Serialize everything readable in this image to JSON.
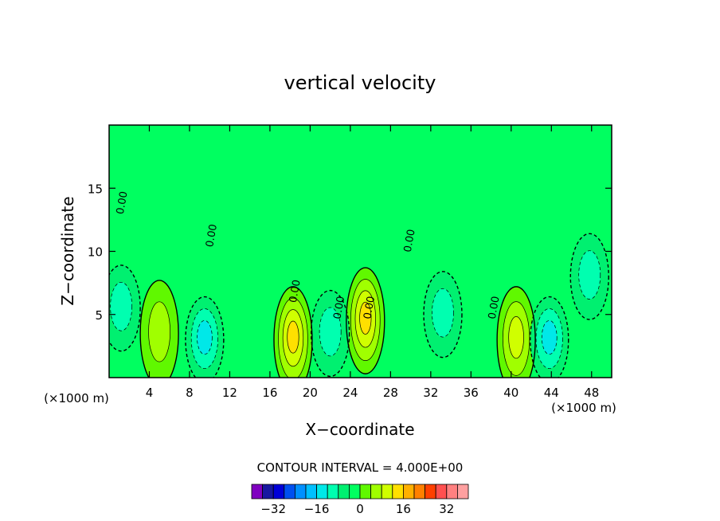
{
  "chart_data": {
    "type": "heatmap",
    "title": "vertical velocity",
    "xlabel": "X−coordinate",
    "ylabel": "Z−coordinate",
    "x_unit": "(×1000 m)",
    "y_unit": "(×1000 m)",
    "xlim": [
      0,
      50
    ],
    "ylim": [
      0,
      20
    ],
    "x_ticks": [
      4,
      8,
      12,
      16,
      20,
      24,
      28,
      32,
      36,
      40,
      44,
      48
    ],
    "y_ticks": [
      5,
      10,
      15
    ],
    "x_tick_labels": [
      "4",
      "8",
      "12",
      "16",
      "20",
      "24",
      "28",
      "32",
      "36",
      "40",
      "44",
      "48"
    ],
    "y_tick_labels": [
      "5",
      "10",
      "15"
    ],
    "contour_interval_label": "CONTOUR INTERVAL = 4.000E+00",
    "contour_labels": [
      {
        "text": "0.00",
        "x": 1.6,
        "y": 13.8
      },
      {
        "text": "0.00",
        "x": 10.5,
        "y": 11.2
      },
      {
        "text": "0.00",
        "x": 30.2,
        "y": 10.8
      },
      {
        "text": "0.00",
        "x": 18.8,
        "y": 6.8
      },
      {
        "text": "0.00",
        "x": 23.2,
        "y": 5.5
      },
      {
        "text": "0.00",
        "x": 26.2,
        "y": 5.5
      },
      {
        "text": "0.00",
        "x": 38.6,
        "y": 5.5
      }
    ],
    "colorbar": {
      "levels": [
        -36,
        -32,
        -28,
        -24,
        -20,
        -16,
        -12,
        -8,
        -4,
        0,
        4,
        8,
        12,
        16,
        20,
        24,
        28,
        32,
        36
      ],
      "tick_labels": [
        "−32",
        "−16",
        "0",
        "16",
        "32"
      ],
      "tick_values": [
        -32,
        -16,
        0,
        16,
        32
      ],
      "colors": [
        "#8000c0",
        "#1818a0",
        "#0000d8",
        "#0050f0",
        "#0090ff",
        "#00c0ff",
        "#00e8e8",
        "#00ffb0",
        "#00f070",
        "#00ff60",
        "#60f800",
        "#a0ff00",
        "#d0ff00",
        "#ffe000",
        "#ffb000",
        "#ff8000",
        "#ff4000",
        "#ff5050",
        "#ff8080",
        "#ffa0a0"
      ]
    },
    "features": [
      {
        "kind": "updraft",
        "x": 18.3,
        "z": 3.0,
        "max": 16
      },
      {
        "kind": "updraft",
        "x": 25.5,
        "z": 4.5,
        "max": 16
      },
      {
        "kind": "updraft",
        "x": 40.5,
        "z": 3.0,
        "max": 12
      },
      {
        "kind": "updraft",
        "x": 5.0,
        "z": 3.5,
        "max": 8
      },
      {
        "kind": "downdraft",
        "x": 9.5,
        "z": 3.0,
        "max": -12
      },
      {
        "kind": "downdraft",
        "x": 43.8,
        "z": 3.0,
        "max": -12
      },
      {
        "kind": "downdraft",
        "x": 33.2,
        "z": 5.0,
        "max": -8
      },
      {
        "kind": "downdraft",
        "x": 22.0,
        "z": 3.5,
        "max": -8
      },
      {
        "kind": "downdraft",
        "x": 1.2,
        "z": 5.5,
        "max": -8
      },
      {
        "kind": "downdraft",
        "x": 47.8,
        "z": 8.0,
        "max": -8
      }
    ]
  }
}
